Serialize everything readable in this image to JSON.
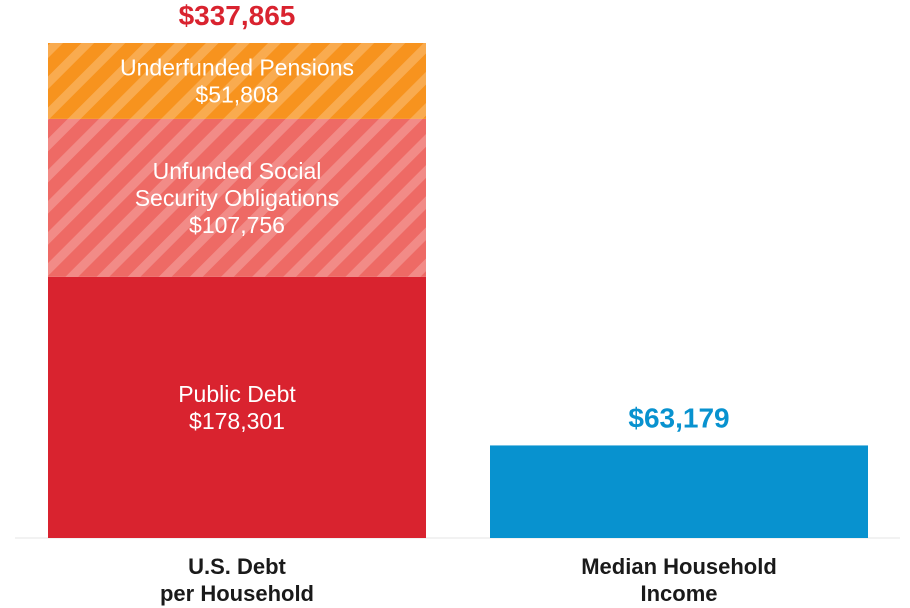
{
  "chart_data": {
    "type": "bar",
    "stacked": true,
    "categories": [
      [
        "U.S. Debt",
        "per Household"
      ],
      [
        "Median Household",
        "Income"
      ]
    ],
    "ylim": [
      0,
      365000
    ],
    "grid": false,
    "legend": "none",
    "bars": [
      {
        "total": 337865,
        "total_label": "$337,865",
        "total_color": "#d9232f",
        "segments": [
          {
            "lines": [
              "Public Debt",
              "$178,301"
            ],
            "value": 178301,
            "color": "#d9232f",
            "pattern": "none"
          },
          {
            "lines": [
              "Unfunded Social",
              "Security Obligations",
              "$107,756"
            ],
            "value": 107756,
            "color": "#ee6a65",
            "pattern": "stripes"
          },
          {
            "lines": [
              "Underfunded Pensions",
              "$51,808"
            ],
            "value": 51808,
            "color": "#f7931e",
            "pattern": "stripes"
          }
        ]
      },
      {
        "total": 63179,
        "total_label": "$63,179",
        "total_color": "#0892cf",
        "segments": [
          {
            "lines": [],
            "value": 63179,
            "color": "#0892cf",
            "pattern": "none"
          }
        ]
      }
    ]
  }
}
